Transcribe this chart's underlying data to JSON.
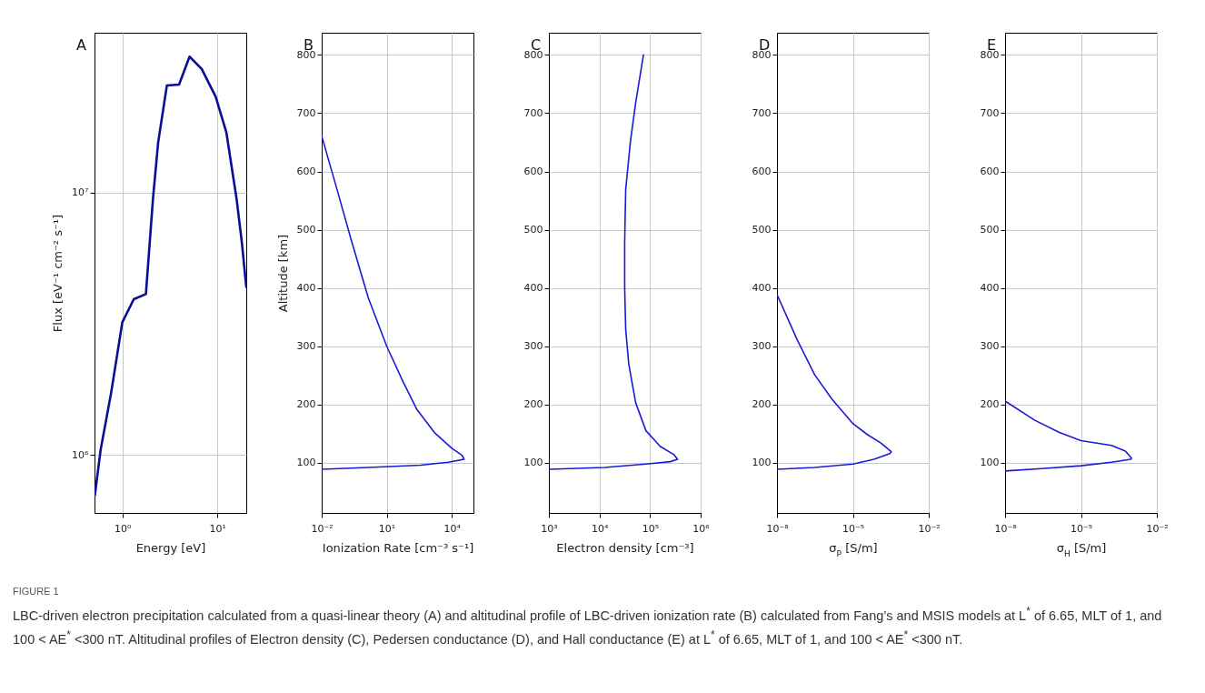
{
  "chart_data": [
    {
      "type": "line",
      "title": "A",
      "xlabel": "Energy [eV]",
      "ylabel": "Flux [eV⁻¹ cm⁻² s⁻¹]",
      "log": "xy",
      "xlim": [
        0.51,
        20.1
      ],
      "ylim": [
        600000,
        40700000
      ],
      "xticks": [
        {
          "value": 1,
          "label": "10⁰"
        },
        {
          "value": 10,
          "label": "10¹"
        }
      ],
      "yticks": [
        {
          "value": 1000000,
          "label": "10⁶"
        },
        {
          "value": 10000000,
          "label": "10⁷"
        }
      ],
      "grid": true,
      "annotations": [
        "FIGURE 1",
        "LBC-driven electron precipitation calculated from a quasi-linear theory (A) and altitudinal profile of LBC-driven ionization rate (B) calculated from Fang’s and MSIS models at L$^{*}$ of 6.65, MLT of 1, and 100 < AE$^{*}$ <300 nT. Altitudinal profiles of Electron density (C), Pedersen conductance (D), and Hall conductance (E) at L$^{*}$ of 6.65, MLT of 1, and 100 < AE$^{*}$ <300 nT."
      ],
      "series": [
        {
          "color": "#0c0c96",
          "x": [
            0.514,
            0.593,
            0.764,
            1.0,
            1.32,
            1.77,
            2.1,
            2.38,
            2.94,
            3.95,
            5.09,
            6.84,
            9.59,
            12.4,
            15.9,
            18.0,
            20.1
          ],
          "values": [
            700000,
            1050000,
            1730000,
            3200000,
            3920000,
            4100000,
            9460000,
            15500000,
            25600000,
            25800000,
            33000000,
            29600000,
            23200000,
            17000000,
            9460000,
            6530000,
            4370000
          ]
        }
      ]
    },
    {
      "type": "line",
      "title": "B",
      "xlabel": "Ionization Rate [cm⁻³ s⁻¹]",
      "ylabel": "Altitude [km]",
      "log": "x",
      "xlim": [
        0.01,
        100000
      ],
      "ylim": [
        14,
        838
      ],
      "xticks": [
        {
          "value": 0.01,
          "label": "10⁻²"
        },
        {
          "value": 10,
          "label": "10¹"
        },
        {
          "value": 10000,
          "label": "10⁴"
        }
      ],
      "yticks": [
        100,
        200,
        300,
        400,
        500,
        600,
        700,
        800
      ],
      "grid": true,
      "series": [
        {
          "color": "#1a1ad6",
          "x": [
            0.01,
            1.41,
            363,
            6900,
            37000,
            30000,
            10000,
            1580,
            251,
            57,
            10,
            1.41,
            0.22,
            0.051,
            0.01
          ],
          "values": [
            89,
            92,
            96,
            101,
            106,
            113,
            125,
            152,
            191,
            239,
            300,
            383,
            485,
            569,
            661
          ]
        }
      ]
    },
    {
      "type": "line",
      "title": "C",
      "xlabel": "Electron density [cm⁻³]",
      "log": "x",
      "xlim": [
        1000,
        1000000
      ],
      "ylim": [
        14,
        838
      ],
      "xticks": [
        {
          "value": 1000,
          "label": "10³"
        },
        {
          "value": 10000,
          "label": "10⁴"
        },
        {
          "value": 100000,
          "label": "10⁵"
        },
        {
          "value": 1000000,
          "label": "10⁶"
        }
      ],
      "yticks": [
        100,
        200,
        300,
        400,
        500,
        600,
        700,
        800
      ],
      "grid": true,
      "series": [
        {
          "color": "#1a1ad6",
          "x": [
            1000,
            12600,
            83000,
            250000,
            350000,
            297000,
            160000,
            83000,
            52000,
            38000,
            33000,
            31500,
            31500,
            33000,
            41000,
            52000,
            74000
          ],
          "values": [
            89,
            92,
            98,
            102,
            106,
            114,
            128,
            155,
            203,
            269,
            329,
            401,
            479,
            569,
            652,
            718,
            800
          ]
        }
      ]
    },
    {
      "type": "line",
      "title": "D",
      "xlabel": "σ$_{P}$ [S/m]",
      "log": "x",
      "xlim": [
        1e-08,
        0.01
      ],
      "ylim": [
        14,
        838
      ],
      "xticks": [
        {
          "value": 1e-08,
          "label": "10⁻⁸"
        },
        {
          "value": 1e-05,
          "label": "10⁻⁵"
        },
        {
          "value": 0.01,
          "label": "10⁻²"
        }
      ],
      "yticks": [
        100,
        200,
        300,
        400,
        500,
        600,
        700,
        800
      ],
      "grid": true,
      "series": [
        {
          "color": "#1a1ad6",
          "x": [
            1e-08,
            3.1e-07,
            1.02e-05,
            6.8e-05,
            0.00029,
            0.00033,
            0.000128,
            3.6e-05,
            1.02e-05,
            1.5e-06,
            3.1e-07,
            6.3e-08,
            1e-08
          ],
          "values": [
            89,
            92,
            98,
            106,
            116,
            119,
            134,
            149,
            167,
            209,
            251,
            311,
            389
          ]
        }
      ]
    },
    {
      "type": "line",
      "title": "E",
      "xlabel": "σ$_{H}$ [S/m]",
      "log": "x",
      "xlim": [
        1e-08,
        0.01
      ],
      "ylim": [
        14,
        838
      ],
      "xticks": [
        {
          "value": 1e-08,
          "label": "10⁻⁸"
        },
        {
          "value": 1e-05,
          "label": "10⁻⁵"
        },
        {
          "value": 0.01,
          "label": "10⁻²"
        }
      ],
      "yticks": [
        100,
        200,
        300,
        400,
        500,
        600,
        700,
        800
      ],
      "grid": true,
      "series": [
        {
          "color": "#1a1ad6",
          "x": [
            1e-08,
            2.8e-07,
            1e-05,
            0.00016,
            0.00093,
            0.001,
            0.00057,
            0.00016,
            1e-05,
            1.4e-06,
            1.5e-07,
            1e-08
          ],
          "values": [
            86,
            90,
            95,
            101,
            106,
            108,
            120,
            130,
            138,
            152,
            173,
            206
          ]
        }
      ]
    }
  ]
}
